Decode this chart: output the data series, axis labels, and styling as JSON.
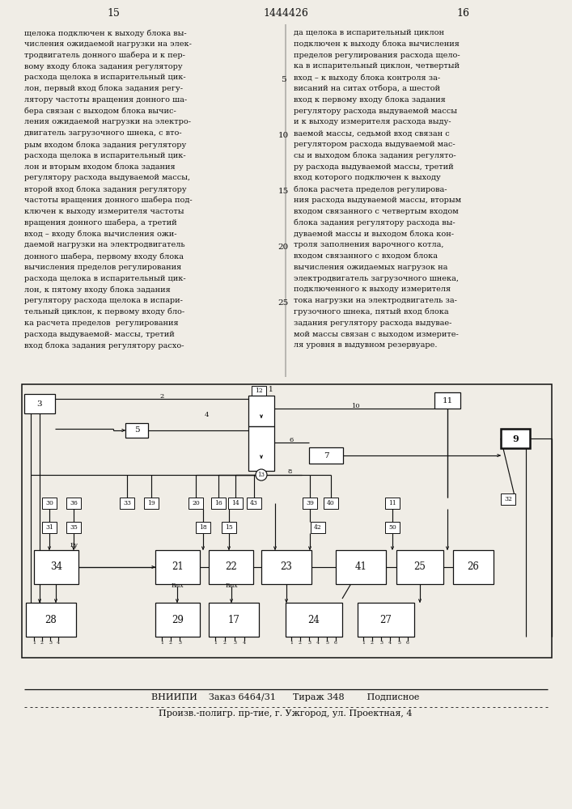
{
  "background_color": "#f0ede6",
  "text_color": "#111111",
  "line_color": "#111111",
  "header": [
    "15",
    "1444426",
    "16"
  ],
  "footer1": "ВНИИПИ    Заказ 6464/31      Тираж 348        Подписное",
  "footer2": "Произв.-полигр. пр-тие, г. Ужгород, ул. Проектная, 4",
  "left_col": [
    "щелока подключен к выходу блока вы-",
    "числения ожидаемой нагрузки на элек-",
    "тродвигатель донного шабера и к пер-",
    "вому входу блока задания регулятору",
    "расхода щелока в испарительный цик-",
    "лон, первый вход блока задания регу-",
    "лятору частоты вращения донного ша-",
    "бера связан с выходом блока вычис-",
    "ления ожидаемой нагрузки на электро-",
    "двигатель загрузочного шнека, с вто-",
    "рым входом блока задания регулятору",
    "расхода щелока в испарительный цик-",
    "лон и вторым входом блока задания",
    "регулятору расхода выдуваемой массы,",
    "второй вход блока задания регулятору",
    "частоты вращения донного шабера под-",
    "ключен к выходу измерителя частоты",
    "вращения донного шабера, а третий",
    "вход – входу блока вычисления ожи-",
    "даемой нагрузки на электродвигатель",
    "донного шабера, первому входу блока",
    "вычисления пределов регулирования",
    "расхода щелока в испарительный цик-",
    "лон, к пятому входу блока задания",
    "регулятору расхода щелока в испари-",
    "тельный циклон, к первому входу бло-",
    "ка расчета пределов  регулирования",
    "расхода выдуваемой- массы, третий",
    "вход блока задания регулятору расхо-"
  ],
  "right_col": [
    "да щелока в испарительный циклон",
    "подключен к выходу блока вычисления",
    "пределов регулирования расхода щело-",
    "ка в испарительный циклон, четвертый",
    "вход – к выходу блока контроля за-",
    "висаний на ситах отбора, а шестой",
    "вход к первому входу блока задания",
    "регулятору расхода выдуваемой массы",
    "и к выходу измерителя расхода выду-",
    "ваемой массы, седьмой вход связан с",
    "регулятором расхода выдуваемой мас-",
    "сы и выходом блока задания регулято-",
    "ру расхода выдуваемой массы, третий",
    "вход которого подключен к выходу",
    "блока расчета пределов регулирова-",
    "ния расхода выдуваемой массы, вторым",
    "входом связанного с четвертым входом",
    "блока задания регулятору расхода вы-",
    "дуваемой массы и выходом блока кон-",
    "троля заполнения варочного котла,",
    "входом связанного с входом блока",
    "вычисления ожидаемых нагрузок на",
    "электродвигатель загрузочного шнека,",
    "подключенного к выходу измерителя",
    "тока нагрузки на электродвигатель за-",
    "грузочного шнека, пятый вход блока",
    "задания регулятору расхода выдувае-",
    "мой массы связан с выходом измерите-",
    "ля уровня в выдувном резервуаре."
  ],
  "line_nums": [
    [
      "5",
      4
    ],
    [
      "10",
      9
    ],
    [
      "15",
      14
    ],
    [
      "20",
      19
    ],
    [
      "25",
      24
    ]
  ]
}
